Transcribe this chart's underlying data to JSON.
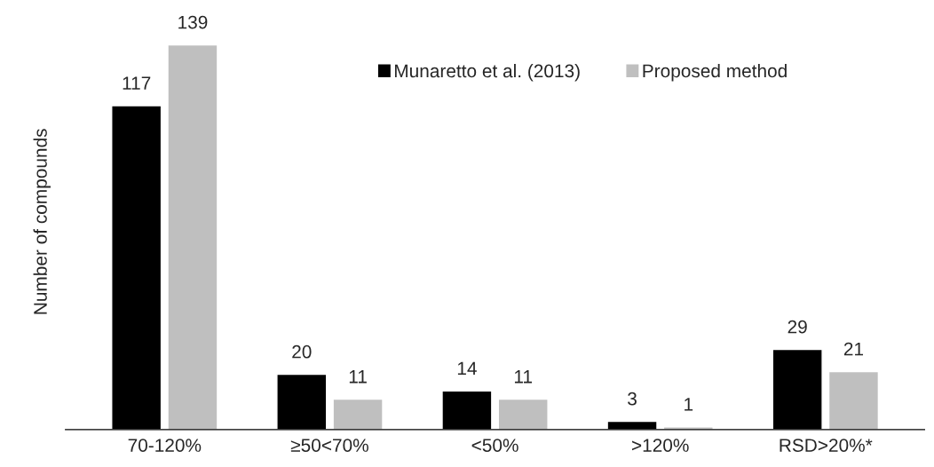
{
  "chart_data": {
    "type": "bar",
    "ylabel": "Number of compounds",
    "categories": [
      "70-120%",
      "≥50<70%",
      "<50%",
      ">120%",
      "RSD>20%*"
    ],
    "series": [
      {
        "name": "Munaretto et al. (2013)",
        "color": "#000000",
        "values": [
          117,
          20,
          14,
          3,
          29
        ]
      },
      {
        "name": "Proposed method",
        "color": "#bfbfbf",
        "values": [
          139,
          11,
          11,
          1,
          21
        ]
      }
    ],
    "data_labels": true,
    "legend": "top right",
    "tick_labels": "x",
    "grid": false
  }
}
